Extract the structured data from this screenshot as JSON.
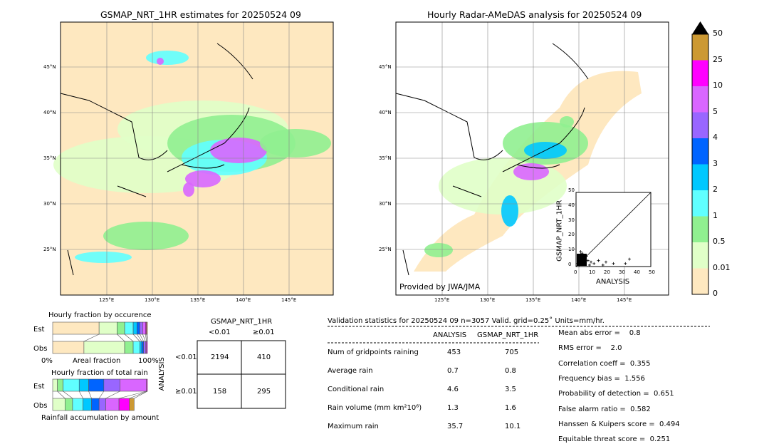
{
  "left_map": {
    "title": "GSMAP_NRT_1HR estimates for 20250524 09"
  },
  "right_map": {
    "title": "Hourly Radar-AMeDAS analysis for 20250524 09",
    "credit": "Provided by JWA/JMA"
  },
  "lon_ticks": [
    "125°E",
    "130°E",
    "135°E",
    "140°E",
    "145°E"
  ],
  "lat_ticks": [
    "45°N",
    "40°N",
    "35°N",
    "30°N",
    "25°N"
  ],
  "colorbar": {
    "labels": [
      "0",
      "0.01",
      "0.5",
      "1",
      "2",
      "3",
      "4",
      "5",
      "10",
      "25",
      "50"
    ],
    "colors": [
      "#fee8c0",
      "#e0ffc8",
      "#90f090",
      "#60ffff",
      "#00c8ff",
      "#0064ff",
      "#9966ff",
      "#d966ff",
      "#ff00ff",
      "#cc9933"
    ]
  },
  "chart_data": {
    "type": "scatter",
    "xlabel": "ANALYSIS",
    "ylabel": "GSMAP_NRT_1HR",
    "xlim": [
      0,
      50
    ],
    "ylim": [
      0,
      50
    ],
    "ticks": [
      "0",
      "10",
      "20",
      "30",
      "40",
      "50"
    ],
    "points": [
      [
        1,
        2
      ],
      [
        2,
        5
      ],
      [
        3,
        8
      ],
      [
        4,
        3
      ],
      [
        5,
        6
      ],
      [
        6,
        2
      ],
      [
        2,
        1
      ],
      [
        8,
        4
      ],
      [
        10,
        3
      ],
      [
        12,
        2
      ],
      [
        15,
        4
      ],
      [
        20,
        3
      ],
      [
        25,
        2
      ],
      [
        35.7,
        5
      ],
      [
        33,
        2
      ],
      [
        18,
        1
      ],
      [
        7,
        7
      ],
      [
        9,
        1
      ],
      [
        4,
        9
      ],
      [
        3,
        10.1
      ]
    ]
  },
  "occurrence": {
    "title": "Hourly fraction by occurence",
    "est_label": "Est",
    "obs_label": "Obs",
    "axis_left": "0%",
    "axis_mid": "Areal fraction",
    "axis_right": "100%",
    "est": [
      49,
      19,
      8,
      9,
      4,
      3,
      3,
      3,
      1,
      1
    ],
    "obs": [
      33,
      43,
      9,
      7,
      2,
      2,
      2,
      1,
      1,
      0
    ]
  },
  "total_rain": {
    "title": "Hourly fraction of total rain",
    "est_label": "Est",
    "obs_label": "Obs",
    "footer": "Rainfall accumulation by amount",
    "est": [
      5,
      6,
      17,
      10,
      16,
      17,
      28,
      1,
      0
    ],
    "obs": [
      13,
      8,
      11,
      9,
      8,
      7,
      14,
      11,
      5
    ]
  },
  "contingency": {
    "title": "GSMAP_NRT_1HR",
    "col1": "<0.01",
    "col2": "≥0.01",
    "row_axis": "ANALYSIS",
    "row1": "<0.01",
    "row2": "≥0.01",
    "cells": [
      "2194",
      "410",
      "158",
      "295"
    ]
  },
  "stats": {
    "header": "Validation statistics for 20250524 09  n=3057 Valid. grid=0.25˚ Units=mm/hr.",
    "col_analysis": "ANALYSIS",
    "col_gsmap": "GSMAP_NRT_1HR",
    "rows": [
      {
        "label": "Num of gridpoints raining",
        "a": "453",
        "g": "705"
      },
      {
        "label": "Average rain",
        "a": "0.7",
        "g": "0.8"
      },
      {
        "label": "Conditional rain",
        "a": "4.6",
        "g": "3.5"
      },
      {
        "label": "Rain volume (mm km²10⁶)",
        "a": "1.3",
        "g": "1.6"
      },
      {
        "label": "Maximum rain",
        "a": "35.7",
        "g": "10.1"
      }
    ],
    "scores": [
      "Mean abs error =    0.8",
      "RMS error =    2.0",
      "Correlation coeff =  0.355",
      "Frequency bias =  1.556",
      "Probability of detection =  0.651",
      "False alarm ratio =  0.582",
      "Hanssen & Kuipers score =  0.494",
      "Equitable threat score =  0.251"
    ]
  }
}
